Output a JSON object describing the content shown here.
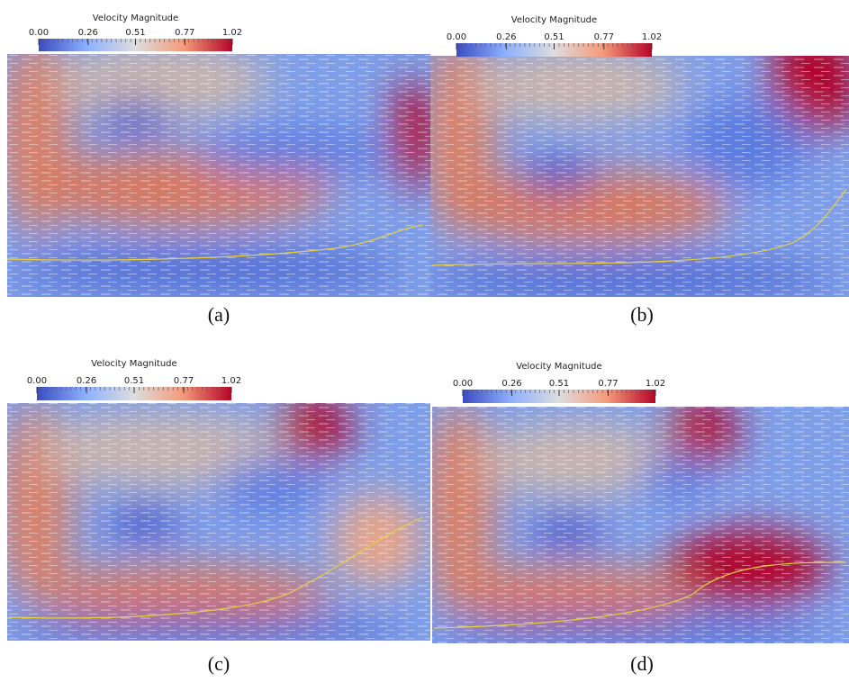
{
  "panels": [
    {
      "colorbar": {
        "title": "Velocity Magnitude",
        "range": [
          0,
          1.02
        ],
        "ticks": [
          {
            "value": 0,
            "label": "0.00"
          },
          {
            "value": 0.26,
            "label": "0.26"
          },
          {
            "value": 0.51,
            "label": "0.51"
          },
          {
            "value": 0.77,
            "label": "0.77"
          },
          {
            "value": 1.02,
            "label": "1.02"
          }
        ]
      },
      "caption": "(a)"
    },
    {
      "colorbar": {
        "title": "Velocity Magnitude",
        "range": [
          0,
          1.02
        ],
        "ticks": [
          {
            "value": 0,
            "label": "0.00"
          },
          {
            "value": 0.26,
            "label": "0.26"
          },
          {
            "value": 0.51,
            "label": "0.51"
          },
          {
            "value": 0.77,
            "label": "0.77"
          },
          {
            "value": 1.02,
            "label": "1.02"
          }
        ]
      },
      "caption": "(b)"
    },
    {
      "colorbar": {
        "title": "Velocity Magnitude",
        "range": [
          0,
          1.02
        ],
        "ticks": [
          {
            "value": 0,
            "label": "0.00"
          },
          {
            "value": 0.26,
            "label": "0.26"
          },
          {
            "value": 0.51,
            "label": "0.51"
          },
          {
            "value": 0.77,
            "label": "0.77"
          },
          {
            "value": 1.02,
            "label": "1.02"
          }
        ]
      },
      "caption": "(c)"
    },
    {
      "colorbar": {
        "title": "Velocity Magnitude",
        "range": [
          0,
          1.02
        ],
        "ticks": [
          {
            "value": 0,
            "label": "0.00"
          },
          {
            "value": 0.26,
            "label": "0.26"
          },
          {
            "value": 0.51,
            "label": "0.51"
          },
          {
            "value": 0.77,
            "label": "0.77"
          },
          {
            "value": 1.02,
            "label": "1.02"
          }
        ]
      },
      "caption": "(d)"
    }
  ]
}
